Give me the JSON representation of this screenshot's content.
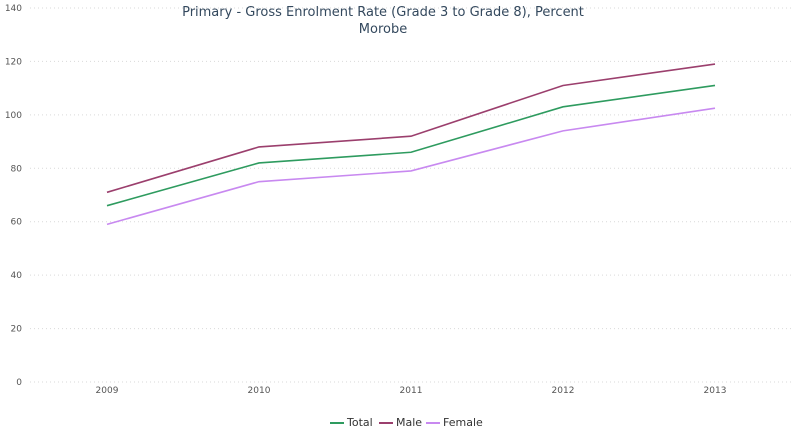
{
  "chart_data": {
    "type": "line",
    "title": "Primary - Gross Enrolment Rate (Grade 3 to Grade 8), Percent",
    "subtitle": "Morobe",
    "categories": [
      "2009",
      "2010",
      "2011",
      "2012",
      "2013"
    ],
    "y_ticks": [
      "0",
      "20",
      "40",
      "60",
      "80",
      "100",
      "120",
      "140"
    ],
    "ylim": [
      0,
      140
    ],
    "grid": true,
    "legend_position": "bottom-center",
    "series": [
      {
        "name": "Total",
        "color": "#2e9b5f",
        "values": [
          66,
          82,
          86,
          103,
          111
        ]
      },
      {
        "name": "Male",
        "color": "#9b3f6d",
        "values": [
          71,
          88,
          92,
          111,
          119
        ]
      },
      {
        "name": "Female",
        "color": "#c889f0",
        "values": [
          59,
          75,
          79,
          94,
          102.5
        ]
      }
    ]
  }
}
